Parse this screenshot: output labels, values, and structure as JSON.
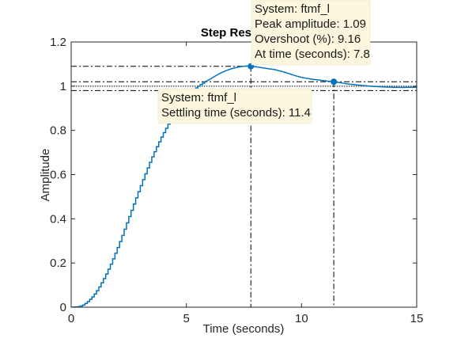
{
  "chart_data": {
    "type": "line",
    "title": "Step Response",
    "xlabel": "Time (seconds)",
    "ylabel": "Amplitude",
    "xlim": [
      0,
      15
    ],
    "ylim": [
      0,
      1.2
    ],
    "xticks": [
      0,
      5,
      10,
      15
    ],
    "yticks": [
      0,
      0.2,
      0.4,
      0.6,
      0.8,
      1,
      1.2
    ],
    "grid": false,
    "legend": "none",
    "series": [
      {
        "name": "ftmf_l",
        "style": "staircase",
        "x": [
          0,
          0.5,
          1,
          1.5,
          2,
          2.5,
          3,
          3.5,
          4,
          4.5,
          5,
          5.5,
          6,
          6.5,
          7,
          7.5,
          7.8,
          8.5,
          9,
          10,
          11,
          11.4,
          12,
          13,
          14,
          15
        ],
        "y": [
          0,
          0.01,
          0.06,
          0.15,
          0.27,
          0.41,
          0.55,
          0.68,
          0.79,
          0.88,
          0.95,
          1.0,
          1.03,
          1.06,
          1.08,
          1.09,
          1.09,
          1.08,
          1.07,
          1.04,
          1.025,
          1.02,
          1.01,
          1.0,
          0.995,
          0.995
        ]
      }
    ],
    "reference_lines": {
      "peak_amplitude": 1.09,
      "settling_upper": 1.02,
      "settling_lower": 0.98,
      "steady_state": 1.0
    },
    "peak_point": {
      "x": 7.8,
      "y": 1.09
    },
    "settling_point": {
      "x": 11.4,
      "y": 1.02
    },
    "annotations": [
      {
        "kind": "peak",
        "lines": [
          "System: ftmf_l",
          "Peak amplitude: 1.09",
          "Overshoot (%): 9.16",
          "At time (seconds): 7.8"
        ]
      },
      {
        "kind": "settling",
        "lines": [
          "System: ftmf_l",
          "Settling time (seconds): 11.4"
        ]
      }
    ],
    "colors": {
      "line": "#0072BD",
      "tooltip_bg": "#fbf6dd",
      "axes": "#262626",
      "ref": "#000000"
    }
  }
}
